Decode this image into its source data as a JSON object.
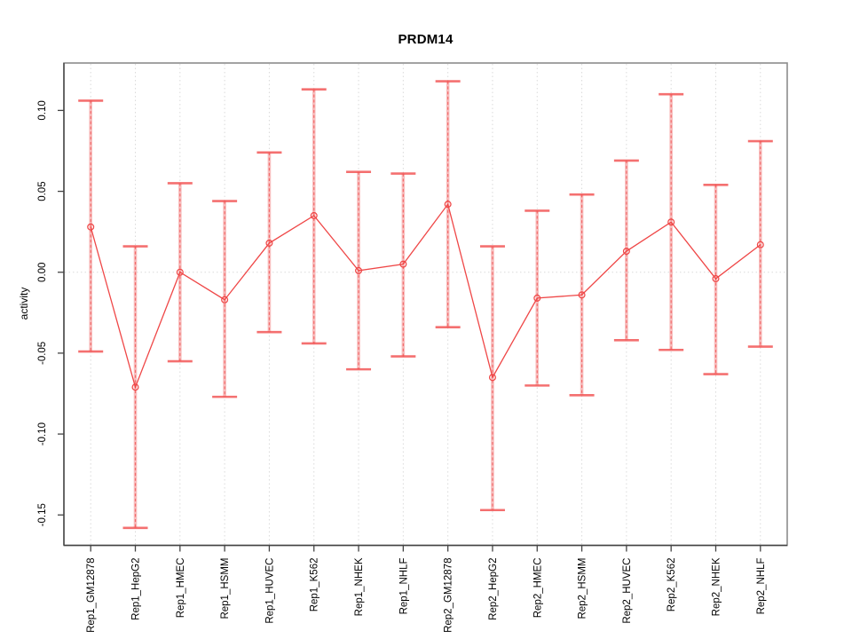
{
  "chart_data": {
    "type": "line",
    "subtype": "points-with-error-bars",
    "title": "PRDM14",
    "xlabel": "",
    "ylabel": "activity",
    "categories": [
      "Rep1_GM12878",
      "Rep1_HepG2",
      "Rep1_HMEC",
      "Rep1_HSMM",
      "Rep1_HUVEC",
      "Rep1_K562",
      "Rep1_NHEK",
      "Rep1_NHLF",
      "Rep2_GM12878",
      "Rep2_HepG2",
      "Rep2_HMEC",
      "Rep2_HSMM",
      "Rep2_HUVEC",
      "Rep2_K562",
      "Rep2_NHEK",
      "Rep2_NHLF"
    ],
    "series": [
      {
        "name": "activity",
        "values": [
          0.028,
          -0.071,
          0.0,
          -0.017,
          0.018,
          0.035,
          0.001,
          0.005,
          0.042,
          -0.065,
          -0.016,
          -0.014,
          0.013,
          0.031,
          -0.004,
          0.017
        ]
      }
    ],
    "error_high": [
      0.106,
      0.016,
      0.055,
      0.044,
      0.074,
      0.113,
      0.062,
      0.061,
      0.118,
      0.016,
      0.038,
      0.048,
      0.069,
      0.11,
      0.054,
      0.081
    ],
    "error_low": [
      -0.049,
      -0.158,
      -0.055,
      -0.077,
      -0.037,
      -0.044,
      -0.06,
      -0.052,
      -0.034,
      -0.147,
      -0.07,
      -0.076,
      -0.042,
      -0.048,
      -0.063,
      -0.046
    ],
    "yticks": [
      {
        "label": "0.10",
        "value": 0.1
      },
      {
        "label": "0.05",
        "value": 0.05
      },
      {
        "label": "0.00",
        "value": 0.0
      },
      {
        "label": "-0.05",
        "value": -0.05
      },
      {
        "label": "-0.10",
        "value": -0.1
      },
      {
        "label": "-0.15",
        "value": -0.15
      }
    ],
    "ylim": [
      -0.1688,
      0.1293
    ],
    "grid": {
      "vertical_dotted_at_each_category": true,
      "zero_line_dotted": true,
      "horizontal_gridlines": false
    },
    "legend": "none",
    "colors": {
      "series": "#EF4747",
      "errorbar": "#F15050",
      "errorbar_pale": "#F6A8A8",
      "grid": "#DADADA",
      "box": "#8C8C8C",
      "axis": "#444444",
      "text": "#000000",
      "background": "#FFFFFF"
    }
  }
}
